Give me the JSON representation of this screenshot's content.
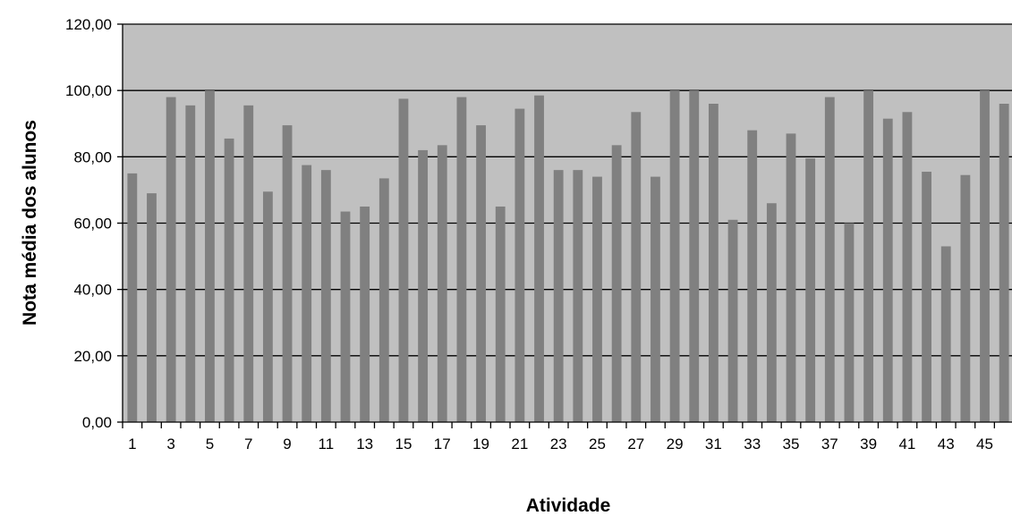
{
  "chart_data": {
    "type": "bar",
    "title": "",
    "xlabel": "Atividade",
    "ylabel": "Nota média dos alunos",
    "ylim": [
      0,
      120
    ],
    "y_tick_labels": [
      "0,00",
      "20,00",
      "40,00",
      "60,00",
      "80,00",
      "100,00",
      "120,00"
    ],
    "categories": [
      1,
      2,
      3,
      4,
      5,
      6,
      7,
      8,
      9,
      10,
      11,
      12,
      13,
      14,
      15,
      16,
      17,
      18,
      19,
      20,
      21,
      22,
      23,
      24,
      25,
      26,
      27,
      28,
      29,
      30,
      31,
      32,
      33,
      34,
      35,
      36,
      37,
      38,
      39,
      40,
      41,
      42,
      43,
      44,
      45,
      46
    ],
    "x_tick_labels": [
      "1",
      "3",
      "5",
      "7",
      "9",
      "11",
      "13",
      "15",
      "17",
      "19",
      "21",
      "23",
      "25",
      "27",
      "29",
      "31",
      "33",
      "35",
      "37",
      "39",
      "41",
      "43",
      "45"
    ],
    "values": [
      75,
      69,
      98,
      95.5,
      100,
      85.5,
      95.5,
      69.5,
      89.5,
      77.5,
      76,
      63.5,
      65,
      73.5,
      97.5,
      82,
      83.5,
      98,
      89.5,
      65,
      94.5,
      98.5,
      76,
      76,
      74,
      83.5,
      93.5,
      74,
      100,
      100,
      96,
      61,
      88,
      66,
      87,
      79.5,
      98,
      60,
      100,
      91.5,
      93.5,
      75.5,
      53,
      74.5,
      100,
      96
    ],
    "grid": true,
    "legend": "none",
    "colors": {
      "plot_background": "#c0c0c0",
      "bar": "#808080",
      "gridline": "#000000",
      "axis": "#000000"
    }
  }
}
